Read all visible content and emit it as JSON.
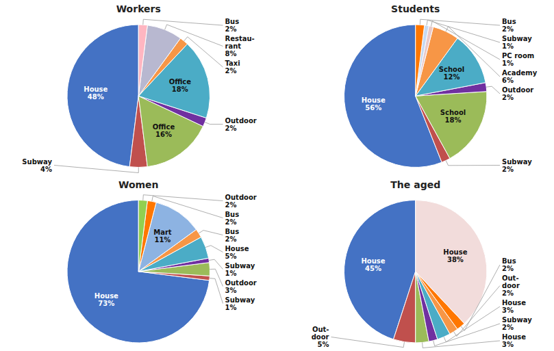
{
  "chart_data": [
    {
      "type": "pie",
      "title": "Workers",
      "categories": [
        "House",
        "Subway",
        "Office",
        "Outdoor",
        "Office",
        "Taxi",
        "Restau-\nrant",
        "Bus"
      ],
      "values": [
        48,
        4,
        16,
        2,
        18,
        2,
        8,
        2
      ],
      "value_labels": [
        "48%",
        "4%",
        "16%",
        "2%",
        "18%",
        "2%",
        "8%",
        "2%"
      ],
      "colors": [
        "#4472C4",
        "#C0504D",
        "#9BBB59",
        "#7030A0",
        "#4BACC6",
        "#F79646",
        "#B8B8D0",
        "#FFB6C1"
      ],
      "data_labels": true
    },
    {
      "type": "pie",
      "title": "Students",
      "categories": [
        "House",
        "Subway",
        "School",
        "Outdoor",
        "School",
        "Academy",
        "PC room",
        "Subway",
        "Bus"
      ],
      "values": [
        56,
        2,
        18,
        2,
        12,
        6,
        1,
        1,
        2
      ],
      "value_labels": [
        "56%",
        "2%",
        "18%",
        "2%",
        "12%",
        "6%",
        "1%",
        "1%",
        "2%"
      ],
      "colors": [
        "#4472C4",
        "#C0504D",
        "#9BBB59",
        "#7030A0",
        "#4BACC6",
        "#F79646",
        "#E8C9C9",
        "#C6D9F1",
        "#FF7700"
      ],
      "data_labels": true
    },
    {
      "type": "pie",
      "title": "Women",
      "categories": [
        "House",
        "Subway",
        "Outdoor",
        "Subway",
        "House",
        "Bus",
        "Mart",
        "Bus",
        "Outdoor"
      ],
      "values": [
        73,
        1,
        3,
        1,
        5,
        2,
        11,
        2,
        2
      ],
      "value_labels": [
        "73%",
        "1%",
        "3%",
        "1%",
        "5%",
        "2%",
        "11%",
        "2%",
        "2%"
      ],
      "colors": [
        "#4472C4",
        "#C0504D",
        "#9BBB59",
        "#7030A0",
        "#4BACC6",
        "#F79646",
        "#8DB3E2",
        "#FF7700",
        "#92D050"
      ],
      "data_labels": true
    },
    {
      "type": "pie",
      "title": "The aged",
      "categories": [
        "House",
        "Out-\ndoor",
        "House",
        "Subway",
        "House",
        "Out-\ndoor",
        "Bus",
        "House"
      ],
      "values": [
        45,
        5,
        3,
        2,
        3,
        2,
        2,
        38
      ],
      "value_labels": [
        "45%",
        "5%",
        "3%",
        "2%",
        "3%",
        "2%",
        "2%",
        "38%"
      ],
      "colors": [
        "#4472C4",
        "#C0504D",
        "#9BBB59",
        "#7030A0",
        "#4BACC6",
        "#F79646",
        "#FF7700",
        "#F2DCDB"
      ],
      "data_labels": true
    }
  ]
}
